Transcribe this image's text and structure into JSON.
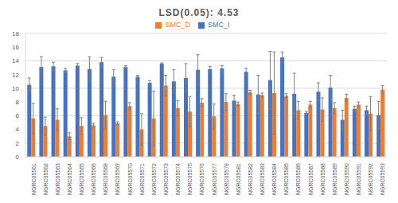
{
  "chart_data": {
    "type": "bar",
    "title": "LSD(0.05): 4.53",
    "categories": [
      "NGRC05561",
      "NGRC05562",
      "NGRC05563",
      "NGRC05564",
      "NGRC05565",
      "NGRC05566",
      "NGRC05568",
      "NGRC05569",
      "NGRC05570",
      "NGRC05571",
      "NGRC05572",
      "NGRC05573",
      "NGRC05574",
      "NGRC05575",
      "NGRC05576",
      "NGRC05577",
      "NGRC05578",
      "NGRC05581",
      "NGRC05582",
      "NGRC05583",
      "NGRC05584",
      "NGRC05585",
      "NGRC05586",
      "NGRC05587",
      "NGRC05588",
      "NGRC05589",
      "NGRC05590",
      "NGRC05591",
      "NGRC05592",
      "NGRC05593"
    ],
    "series": [
      {
        "name": "SMC_I",
        "color": "#4472c4",
        "values": [
          10.5,
          13.1,
          13.2,
          12.6,
          13.3,
          12.8,
          13.8,
          11.7,
          13.1,
          11.7,
          10.8,
          13.6,
          11.0,
          11.5,
          12.7,
          12.8,
          12.9,
          8.2,
          12.4,
          9.1,
          11.2,
          14.5,
          9.2,
          6.4,
          9.5,
          10.1,
          5.4,
          7.0,
          6.8,
          6.1
        ],
        "errors": [
          1.0,
          1.5,
          0.6,
          0.3,
          0.3,
          1.8,
          0.7,
          1.0,
          0.2,
          0.2,
          0.3,
          0.1,
          1.7,
          2.1,
          2.2,
          0.4,
          0.4,
          0.8,
          0.5,
          2.8,
          4.2,
          0.8,
          3.0,
          0.2,
          1.3,
          1.8,
          1.4,
          0.4,
          0.6,
          2.0
        ]
      },
      {
        "name": "SMC_D",
        "color": "#ed7d31",
        "values": [
          5.6,
          4.5,
          5.4,
          3.0,
          4.5,
          4.6,
          6.1,
          4.9,
          7.4,
          4.0,
          5.6,
          10.4,
          7.1,
          6.6,
          7.9,
          5.9,
          8.0,
          7.7,
          9.4,
          9.0,
          9.3,
          8.9,
          6.8,
          7.6,
          6.9,
          7.1,
          8.6,
          7.6,
          6.3,
          9.8
        ],
        "errors": [
          2.2,
          1.3,
          1.6,
          0.5,
          1.2,
          0.3,
          2.0,
          0.2,
          0.5,
          2.3,
          4.0,
          1.5,
          1.1,
          2.2,
          0.6,
          1.8,
          1.2,
          0.3,
          0.3,
          0.3,
          6.0,
          0.3,
          1.3,
          0.5,
          1.7,
          0.8,
          0.5,
          0.4,
          2.5,
          0.6
        ]
      }
    ],
    "ylim": [
      0,
      18
    ],
    "yticks": [
      0,
      2,
      4,
      6,
      8,
      10,
      12,
      14,
      16,
      18
    ],
    "grid": true,
    "legend": "top"
  }
}
